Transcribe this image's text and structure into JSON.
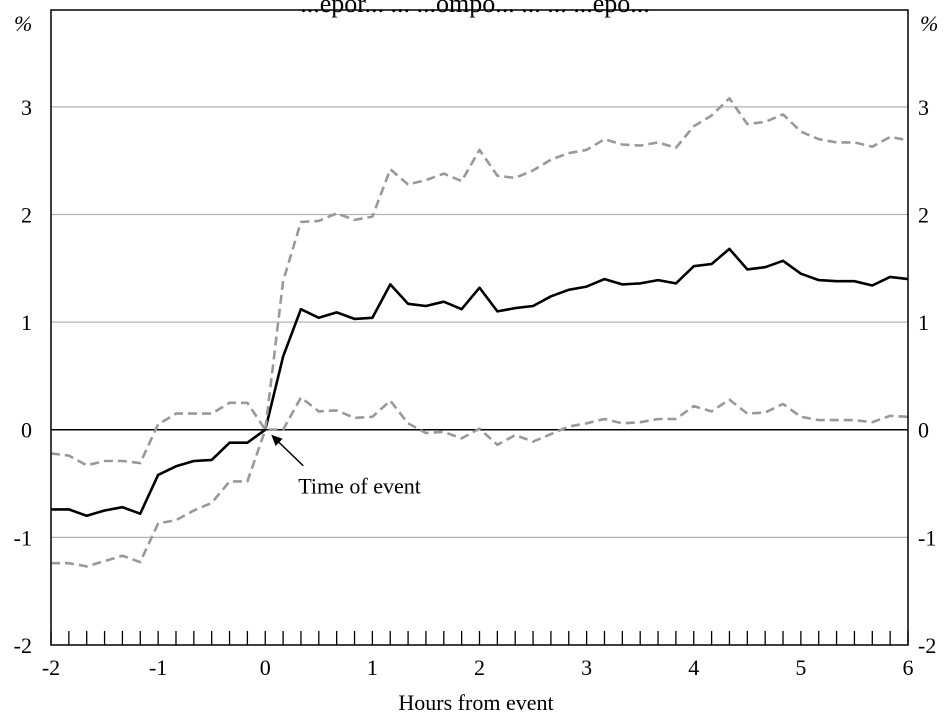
{
  "chart_data": {
    "type": "line",
    "title": "",
    "title_partial": "...epor... ... ...ompo... ... ... ...epo...",
    "xlabel": "Hours from event",
    "ylabel_left": "%",
    "ylabel_right": "%",
    "xlim": [
      -2,
      6
    ],
    "ylim": [
      -2,
      3.9
    ],
    "x_ticks": [
      -2,
      -1,
      0,
      1,
      2,
      3,
      4,
      5,
      6
    ],
    "y_ticks": [
      -2,
      -1,
      0,
      1,
      2,
      3
    ],
    "grid": "horizontal",
    "annotation": {
      "text": "Time of event",
      "x": 0,
      "y": 0
    },
    "x": [
      -2.0,
      -1.833,
      -1.667,
      -1.5,
      -1.333,
      -1.167,
      -1.0,
      -0.833,
      -0.667,
      -0.5,
      -0.333,
      -0.167,
      0.0,
      0.167,
      0.333,
      0.5,
      0.667,
      0.833,
      1.0,
      1.167,
      1.333,
      1.5,
      1.667,
      1.833,
      2.0,
      2.167,
      2.333,
      2.5,
      2.667,
      2.833,
      3.0,
      3.167,
      3.333,
      3.5,
      3.667,
      3.833,
      4.0,
      4.167,
      4.333,
      4.5,
      4.667,
      4.833,
      5.0,
      5.167,
      5.333,
      5.5,
      5.667,
      5.833,
      6.0
    ],
    "series": [
      {
        "style": "solid",
        "color": "#000000",
        "values": [
          -0.74,
          -0.74,
          -0.8,
          -0.75,
          -0.72,
          -0.78,
          -0.42,
          -0.34,
          -0.29,
          -0.28,
          -0.12,
          -0.12,
          0.0,
          0.68,
          1.12,
          1.04,
          1.09,
          1.03,
          1.04,
          1.35,
          1.17,
          1.15,
          1.19,
          1.12,
          1.32,
          1.1,
          1.13,
          1.15,
          1.24,
          1.3,
          1.33,
          1.4,
          1.35,
          1.36,
          1.39,
          1.36,
          1.52,
          1.54,
          1.68,
          1.49,
          1.51,
          1.57,
          1.45,
          1.39,
          1.38,
          1.38,
          1.34,
          1.42,
          1.4
        ]
      },
      {
        "style": "dashed",
        "color": "#999999",
        "values": [
          -0.22,
          -0.24,
          -0.33,
          -0.29,
          -0.29,
          -0.31,
          0.05,
          0.15,
          0.15,
          0.15,
          0.25,
          0.25,
          0.0,
          0.0,
          0.3,
          0.17,
          0.18,
          0.11,
          0.12,
          0.27,
          0.06,
          -0.03,
          -0.02,
          -0.08,
          0.01,
          -0.14,
          -0.05,
          -0.11,
          -0.04,
          0.03,
          0.06,
          0.1,
          0.06,
          0.07,
          0.1,
          0.1,
          0.22,
          0.17,
          0.28,
          0.15,
          0.16,
          0.24,
          0.12,
          0.09,
          0.09,
          0.09,
          0.07,
          0.13,
          0.12
        ]
      },
      {
        "style": "dashed",
        "color": "#999999",
        "values": [
          -1.24,
          -1.24,
          -1.27,
          -1.22,
          -1.17,
          -1.23,
          -0.87,
          -0.84,
          -0.75,
          -0.68,
          -0.48,
          -0.48,
          0.0,
          1.38,
          1.93,
          1.94,
          2.01,
          1.95,
          1.98,
          2.42,
          2.28,
          2.32,
          2.38,
          2.31,
          2.6,
          2.36,
          2.34,
          2.41,
          2.51,
          2.57,
          2.6,
          2.7,
          2.65,
          2.64,
          2.67,
          2.62,
          2.82,
          2.92,
          3.08,
          2.84,
          2.86,
          2.93,
          2.77,
          2.7,
          2.67,
          2.67,
          2.63,
          2.72,
          2.69
        ]
      }
    ]
  }
}
